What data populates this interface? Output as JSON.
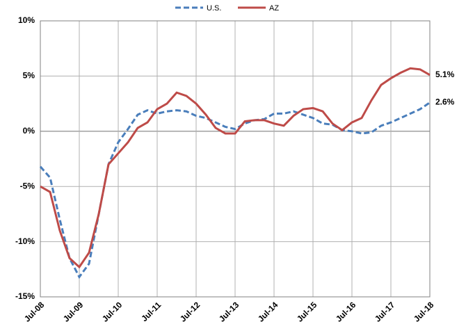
{
  "chart_data": {
    "type": "line",
    "categories": [
      "Jul-08",
      null,
      null,
      null,
      "Jul-09",
      null,
      null,
      null,
      "Jul-10",
      null,
      null,
      null,
      "Jul-11",
      null,
      null,
      null,
      "Jul-12",
      null,
      null,
      null,
      "Jul-13",
      null,
      null,
      null,
      "Jul-14",
      null,
      null,
      null,
      "Jul-15",
      null,
      null,
      null,
      "Jul-16",
      null,
      null,
      null,
      "Jul-17",
      null,
      null,
      null,
      "Jul-18"
    ],
    "series": [
      {
        "name": "U.S.",
        "color": "#4a7ebb",
        "dashed": true,
        "values": [
          -3.2,
          -4.2,
          -8,
          -11.5,
          -13.2,
          -12,
          -7.5,
          -3,
          -1,
          0.2,
          1.5,
          1.9,
          1.6,
          1.8,
          1.9,
          1.8,
          1.4,
          1.2,
          0.8,
          0.4,
          0.2,
          0.7,
          1.0,
          1.1,
          1.6,
          1.6,
          1.8,
          1.5,
          1.2,
          0.7,
          0.6,
          0.1,
          0.0,
          -0.2,
          -0.1,
          0.5,
          0.8,
          1.2,
          1.6,
          2.0,
          2.6
        ],
        "value_labels": [
          null,
          null,
          null,
          null,
          null,
          null,
          null,
          null,
          null,
          null,
          null,
          null,
          null,
          null,
          null,
          null,
          null,
          null,
          null,
          null,
          null,
          null,
          null,
          null,
          null,
          null,
          null,
          null,
          null,
          null,
          null,
          null,
          null,
          null,
          null,
          null,
          null,
          null,
          null,
          null,
          "2.6%"
        ],
        "label_color": "#2e86c1"
      },
      {
        "name": "AZ",
        "color": "#be4b48",
        "dashed": false,
        "values": [
          -5,
          -5.5,
          -9,
          -11.5,
          -12.3,
          -11,
          -7.5,
          -3,
          -2,
          -1,
          0.3,
          0.8,
          2.0,
          2.5,
          3.5,
          3.2,
          2.5,
          1.5,
          0.3,
          -0.2,
          -0.2,
          0.9,
          1.0,
          1.0,
          0.7,
          0.5,
          1.4,
          2.0,
          2.1,
          1.8,
          0.7,
          0.1,
          0.8,
          1.2,
          2.8,
          4.2,
          4.8,
          5.3,
          5.7,
          5.6,
          5.1
        ],
        "value_labels": [
          null,
          null,
          null,
          null,
          null,
          null,
          null,
          null,
          null,
          null,
          null,
          null,
          null,
          null,
          null,
          null,
          null,
          null,
          null,
          null,
          null,
          null,
          null,
          null,
          null,
          null,
          null,
          null,
          null,
          null,
          null,
          null,
          null,
          null,
          null,
          null,
          null,
          null,
          null,
          null,
          "5.1%"
        ],
        "label_color": "#c0392b"
      }
    ],
    "ylim": [
      -15,
      10
    ],
    "yticks": [
      {
        "value": -15,
        "label": "-15%"
      },
      {
        "value": -10,
        "label": "-10%"
      },
      {
        "value": -5,
        "label": "-5%"
      },
      {
        "value": 0,
        "label": "0%"
      },
      {
        "value": 5,
        "label": "5%"
      },
      {
        "value": 10,
        "label": "10%"
      }
    ],
    "grid": true,
    "legend": "top"
  }
}
